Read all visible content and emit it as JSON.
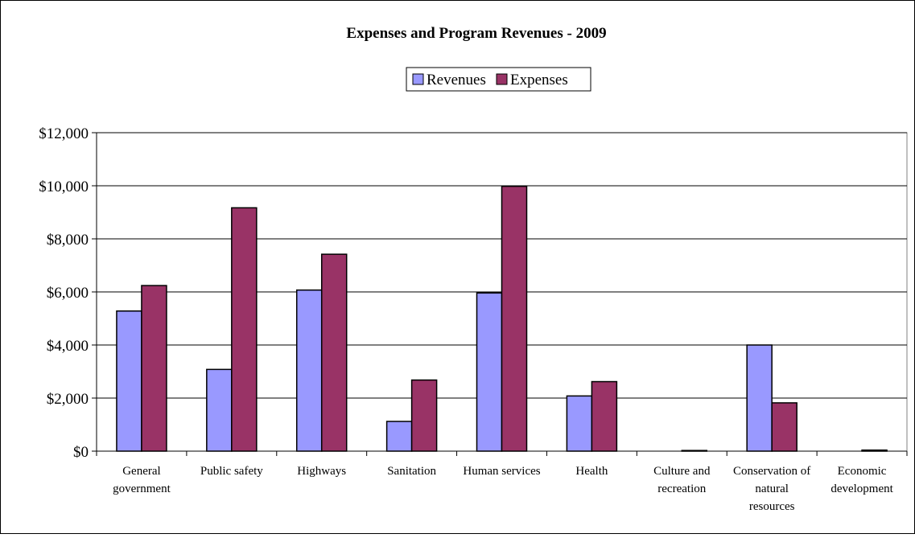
{
  "chart_data": {
    "type": "bar",
    "title": "Expenses and Program Revenues - 2009",
    "xlabel": "",
    "ylabel": "",
    "ylim": [
      0,
      12000
    ],
    "yticks": [
      0,
      2000,
      4000,
      6000,
      8000,
      10000,
      12000
    ],
    "ytick_labels": [
      "$0",
      "$2,000",
      "$4,000",
      "$6,000",
      "$8,000",
      "$10,000",
      "$12,000"
    ],
    "grid": true,
    "legend_position": "top-center",
    "categories": [
      [
        "General",
        "government"
      ],
      [
        "Public safety"
      ],
      [
        "Highways"
      ],
      [
        "Sanitation"
      ],
      [
        "Human services"
      ],
      [
        "Health"
      ],
      [
        "Culture and",
        "recreation"
      ],
      [
        "Conservation of",
        "natural",
        "resources"
      ],
      [
        "Economic",
        "development"
      ]
    ],
    "series": [
      {
        "name": "Revenues",
        "color": "#9999ff",
        "values": [
          5280,
          3080,
          6070,
          1120,
          5960,
          2080,
          0,
          4000,
          0
        ]
      },
      {
        "name": "Expenses",
        "color": "#993366",
        "values": [
          6240,
          9170,
          7420,
          2680,
          9980,
          2620,
          25,
          1820,
          40
        ]
      }
    ]
  }
}
